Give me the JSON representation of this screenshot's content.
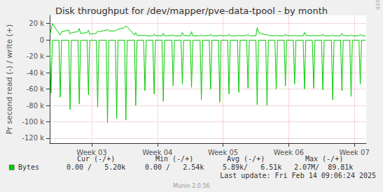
{
  "chart_data": {
    "type": "line",
    "title": "Disk throughput for /dev/mapper/pve-data-tpool - by month",
    "y_label": "Pr second read (-) / write (+)",
    "side_text": "RRDTOOL / TOBI OETIKER",
    "grid": true,
    "x": [
      2.36,
      2.38,
      2.4,
      2.5,
      2.52,
      2.54,
      2.65,
      2.67,
      2.69,
      2.79,
      2.81,
      2.83,
      2.93,
      2.95,
      2.97,
      3.07,
      3.09,
      3.11,
      3.22,
      3.24,
      3.26,
      3.36,
      3.38,
      3.4,
      3.5,
      3.52,
      3.54,
      3.65,
      3.67,
      3.69,
      3.79,
      3.81,
      3.83,
      3.93,
      3.95,
      3.97,
      4.07,
      4.09,
      4.11,
      4.22,
      4.24,
      4.26,
      4.36,
      4.38,
      4.4,
      4.5,
      4.52,
      4.54,
      4.65,
      4.67,
      4.69,
      4.79,
      4.81,
      4.83,
      4.93,
      4.95,
      4.97,
      5.07,
      5.09,
      5.11,
      5.22,
      5.24,
      5.26,
      5.36,
      5.38,
      5.4,
      5.5,
      5.52,
      5.54,
      5.65,
      5.67,
      5.69,
      5.79,
      5.81,
      5.83,
      5.93,
      5.95,
      5.97,
      6.07,
      6.09,
      6.11,
      6.22,
      6.24,
      6.26,
      6.36,
      6.38,
      6.4,
      6.5,
      6.52,
      6.54,
      6.65,
      6.67,
      6.69,
      6.79,
      6.81,
      6.83,
      6.93,
      6.95,
      6.97,
      7.07,
      7.09,
      7.11,
      7.17
    ],
    "xlim": [
      2.36,
      7.18
    ],
    "xticks": [
      {
        "value": 3,
        "label": "Week 03"
      },
      {
        "value": 4,
        "label": "Week 04"
      },
      {
        "value": 5,
        "label": "Week 05"
      },
      {
        "value": 6,
        "label": "Week 06"
      },
      {
        "value": 7,
        "label": "Week 07"
      }
    ],
    "ylim": [
      -126000,
      30000
    ],
    "yticks": [
      {
        "value": -120000,
        "label": "-120 k"
      },
      {
        "value": -100000,
        "label": "-100 k"
      },
      {
        "value": -80000,
        "label": "-80 k"
      },
      {
        "value": -60000,
        "label": "-60 k"
      },
      {
        "value": -40000,
        "label": "-40 k"
      },
      {
        "value": -20000,
        "label": "-20 k"
      },
      0,
      {
        "value": 20000,
        "label": "20 k"
      }
    ],
    "series": [
      {
        "name": "Bytes",
        "color": "#00cc00",
        "values": [
          5000,
          12000,
          20000,
          8000,
          6000,
          10000,
          12000,
          7000,
          9000,
          10000,
          14000,
          8000,
          9000,
          12000,
          7000,
          8000,
          11000,
          10000,
          12000,
          13000,
          11000,
          11000,
          12000,
          13000,
          15000,
          17000,
          16000,
          6000,
          9000,
          5500,
          5500,
          6000,
          5000,
          5000,
          7000,
          5500,
          5000,
          8000,
          5000,
          5500,
          6000,
          5000,
          5000,
          9000,
          5500,
          5000,
          10000,
          5000,
          5000,
          6000,
          5000,
          5500,
          7000,
          5000,
          5000,
          6000,
          5500,
          5000,
          7000,
          5000,
          5000,
          6000,
          5000,
          5500,
          7000,
          5000,
          5000,
          15000,
          9000,
          6000,
          7000,
          5500,
          5000,
          6000,
          5000,
          5000,
          7000,
          5500,
          5000,
          6000,
          5000,
          5000,
          9000,
          5500,
          5000,
          6000,
          5000,
          5500,
          7000,
          5000,
          5000,
          6000,
          5000,
          5000,
          8000,
          5500,
          5000,
          6000,
          5000,
          5000,
          7000,
          5200,
          5200
        ]
      },
      {
        "name": "Bytes",
        "color": "#00cc00",
        "values": [
          -500,
          -65000,
          -500,
          -500,
          -70000,
          -500,
          -500,
          -85000,
          -500,
          -500,
          -78000,
          -500,
          -500,
          -67000,
          -500,
          -500,
          -82000,
          -500,
          -500,
          -101000,
          -500,
          -500,
          -96000,
          -500,
          -500,
          -98000,
          -500,
          -500,
          -80000,
          -500,
          -500,
          -62000,
          -500,
          -500,
          -66000,
          -500,
          -500,
          -75000,
          -500,
          -500,
          -56000,
          -500,
          -500,
          -54000,
          -500,
          -500,
          -58000,
          -500,
          -500,
          -73000,
          -500,
          -500,
          -60000,
          -500,
          -500,
          -76000,
          -500,
          -500,
          -66000,
          -500,
          -500,
          -64000,
          -500,
          -500,
          -59000,
          -500,
          -500,
          -79000,
          -500,
          -500,
          -80000,
          -500,
          -500,
          -60000,
          -500,
          -500,
          -56000,
          -500,
          -500,
          -54000,
          -500,
          -500,
          -60000,
          -500,
          -500,
          -59000,
          -500,
          -500,
          -61000,
          -500,
          -500,
          -73000,
          -500,
          -500,
          -62000,
          -500,
          -500,
          -69000,
          -500,
          -500,
          -54000,
          -500,
          -500
        ]
      }
    ],
    "summary": {
      "columns": [
        "Cur (-/+)",
        "Min (-/+)",
        "Avg (-/+)",
        "Max (-/+)"
      ],
      "row": {
        "name": "Bytes",
        "cells": [
          "0.00 /   5.20k",
          "0.00 /   2.54k",
          "5.89k/   6.51k",
          "2.07M/  89.81k"
        ]
      }
    },
    "footer": "Last update: Fri Feb 14 09:06:24 2025",
    "credit": "Munin 2.0.56"
  }
}
